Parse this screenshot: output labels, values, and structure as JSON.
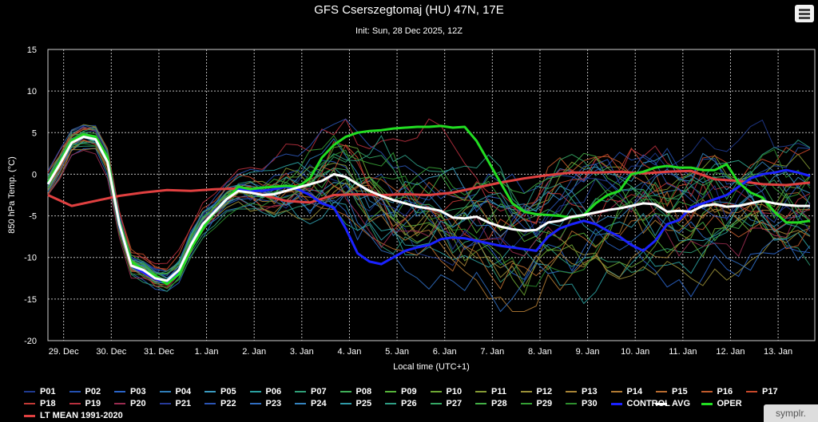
{
  "header": {
    "title": "GFS Cserszegtomaj (HU) 47N, 17E",
    "subtitle": "Init: Sun, 28 Dec 2025, 12Z"
  },
  "badge": "symplr.",
  "chart_data": {
    "type": "line",
    "title": "GFS Cserszegtomaj (HU) 47N, 17E",
    "subtitle": "Init: Sun, 28 Dec 2025, 12Z",
    "xlabel": "Local time (UTC+1)",
    "ylabel": "850 hPa Temp. (°C)",
    "xlim": [
      0,
      16.1
    ],
    "ylim": [
      -20,
      15
    ],
    "y_ticks": [
      -20,
      -15,
      -10,
      -5,
      0,
      5,
      10,
      15
    ],
    "x_ticks": [
      {
        "x": 0.33,
        "label": "29. Dec"
      },
      {
        "x": 1.33,
        "label": "30. Dec"
      },
      {
        "x": 2.33,
        "label": "31. Dec"
      },
      {
        "x": 3.33,
        "label": "1. Jan"
      },
      {
        "x": 4.33,
        "label": "2. Jan"
      },
      {
        "x": 5.33,
        "label": "3. Jan"
      },
      {
        "x": 6.33,
        "label": "4. Jan"
      },
      {
        "x": 7.33,
        "label": "5. Jan"
      },
      {
        "x": 8.33,
        "label": "6. Jan"
      },
      {
        "x": 9.33,
        "label": "7. Jan"
      },
      {
        "x": 10.33,
        "label": "8. Jan"
      },
      {
        "x": 11.33,
        "label": "9. Jan"
      },
      {
        "x": 12.33,
        "label": "10. Jan"
      },
      {
        "x": 13.33,
        "label": "11. Jan"
      },
      {
        "x": 14.33,
        "label": "12. Jan"
      },
      {
        "x": 15.33,
        "label": "13. Jan"
      }
    ],
    "grid": true,
    "legend_position": "bottom",
    "series": [
      {
        "name": "P01",
        "color": "#1f3a8f",
        "width": 1
      },
      {
        "name": "P02",
        "color": "#2350b0",
        "width": 1
      },
      {
        "name": "P03",
        "color": "#2a64c8",
        "width": 1
      },
      {
        "name": "P04",
        "color": "#2f7db8",
        "width": 1
      },
      {
        "name": "P05",
        "color": "#3a9ac0",
        "width": 1
      },
      {
        "name": "P06",
        "color": "#2aa0a0",
        "width": 1
      },
      {
        "name": "P07",
        "color": "#2f9f78",
        "width": 1
      },
      {
        "name": "P08",
        "color": "#3fae58",
        "width": 1
      },
      {
        "name": "P09",
        "color": "#56b43a",
        "width": 1
      },
      {
        "name": "P10",
        "color": "#6da633",
        "width": 1
      },
      {
        "name": "P11",
        "color": "#859a34",
        "width": 1
      },
      {
        "name": "P12",
        "color": "#9a9038",
        "width": 1
      },
      {
        "name": "P13",
        "color": "#a88436",
        "width": 1
      },
      {
        "name": "P14",
        "color": "#b07a33",
        "width": 1
      },
      {
        "name": "P15",
        "color": "#b86b2f",
        "width": 1
      },
      {
        "name": "P16",
        "color": "#c05a2c",
        "width": 1
      },
      {
        "name": "P17",
        "color": "#c8482a",
        "width": 1
      },
      {
        "name": "P18",
        "color": "#c43a36",
        "width": 1
      },
      {
        "name": "P19",
        "color": "#b8303e",
        "width": 1
      },
      {
        "name": "P20",
        "color": "#9a2c50",
        "width": 1
      },
      {
        "name": "P21",
        "color": "#273a9a",
        "width": 1
      },
      {
        "name": "P22",
        "color": "#2b55b5",
        "width": 1
      },
      {
        "name": "P23",
        "color": "#306ec2",
        "width": 1
      },
      {
        "name": "P24",
        "color": "#3584c0",
        "width": 1
      },
      {
        "name": "P25",
        "color": "#2f9aa8",
        "width": 1
      },
      {
        "name": "P26",
        "color": "#2f9f86",
        "width": 1
      },
      {
        "name": "P27",
        "color": "#35a865",
        "width": 1
      },
      {
        "name": "P28",
        "color": "#43b046",
        "width": 1
      },
      {
        "name": "P29",
        "color": "#35a035",
        "width": 1
      },
      {
        "name": "P30",
        "color": "#2e8f2e",
        "width": 1
      },
      {
        "name": "CONTROL",
        "color": "#1a22ff",
        "width": 3
      },
      {
        "name": "AVG",
        "color": "#ffffff",
        "width": 3
      },
      {
        "name": "OPER",
        "color": "#22dd22",
        "width": 3
      },
      {
        "name": "LT MEAN 1991-2020",
        "color": "#e04040",
        "width": 3
      }
    ],
    "reference_series": {
      "AVG": {
        "x": [
          0,
          0.25,
          0.5,
          0.75,
          1,
          1.25,
          1.5,
          1.75,
          2,
          2.25,
          2.5,
          2.75,
          3,
          3.25,
          3.5,
          3.75,
          4,
          4.25,
          4.5,
          4.75,
          5,
          5.25,
          5.5,
          5.75,
          6,
          6.25,
          6.5,
          6.75,
          7,
          7.25,
          7.5,
          7.75,
          8,
          8.25,
          8.5,
          8.75,
          9,
          9.25,
          9.5,
          9.75,
          10,
          10.25,
          10.5,
          10.75,
          11,
          11.25,
          11.5,
          11.75,
          12,
          12.25,
          12.5,
          12.75,
          13,
          13.25,
          13.5,
          13.75,
          14,
          14.25,
          14.5,
          14.75,
          15,
          15.25,
          15.5,
          15.75,
          16
        ],
        "y": [
          -1.2,
          1.2,
          3.8,
          4.5,
          4.2,
          1.5,
          -6,
          -11,
          -11.5,
          -12.5,
          -12.8,
          -11.5,
          -8.5,
          -6,
          -4.5,
          -3,
          -2,
          -2.2,
          -2.5,
          -2.4,
          -2,
          -1.6,
          -1.2,
          -0.8,
          0,
          -0.3,
          -1.2,
          -2,
          -2.6,
          -3.1,
          -3.5,
          -3.9,
          -4.1,
          -4.4,
          -5.2,
          -5.3,
          -5.1,
          -5.8,
          -6.3,
          -6.6,
          -6.8,
          -6.7,
          -5.8,
          -5.6,
          -5.1,
          -4.9,
          -4.6,
          -4.3,
          -4.1,
          -3.8,
          -3.5,
          -3.6,
          -4.5,
          -4.4,
          -4.5,
          -3.8,
          -3.6,
          -3.9,
          -3.8,
          -3.5,
          -3.2,
          -3.5,
          -3.7,
          -3.8,
          -3.8
        ]
      },
      "OPER": {
        "x": [
          0,
          0.25,
          0.5,
          0.75,
          1,
          1.25,
          1.5,
          1.75,
          2,
          2.25,
          2.5,
          2.75,
          3,
          3.25,
          3.5,
          3.75,
          4,
          4.25,
          4.5,
          4.75,
          5,
          5.25,
          5.5,
          5.75,
          6,
          6.25,
          6.5,
          6.75,
          7,
          7.25,
          7.5,
          7.75,
          8,
          8.25,
          8.5,
          8.75,
          9,
          9.25,
          9.5,
          9.75,
          10,
          10.25,
          10.5,
          10.75,
          11,
          11.25,
          11.5,
          11.75,
          12,
          12.25,
          12.5,
          12.75,
          13,
          13.25,
          13.5,
          13.75,
          14,
          14.25,
          14.5,
          14.75,
          15,
          15.25,
          15.5,
          15.75,
          16
        ],
        "y": [
          -1,
          1.5,
          4,
          4.8,
          4.5,
          2,
          -6,
          -10.5,
          -11.5,
          -12.2,
          -13.2,
          -12,
          -9,
          -6.5,
          -4.5,
          -3,
          -1.5,
          -1.8,
          -1.6,
          -1.5,
          -1.4,
          -1.5,
          -0.5,
          2,
          3.5,
          4.5,
          5,
          5.2,
          5.3,
          5.5,
          5.6,
          5.7,
          5.7,
          5.8,
          5.6,
          5.7,
          4,
          1.5,
          -1,
          -3.5,
          -4.5,
          -4.8,
          -4.9,
          -5,
          -5.2,
          -4.9,
          -3.5,
          -2.5,
          -2,
          0,
          0.3,
          0.8,
          1,
          0.8,
          0.8,
          0.5,
          0.5,
          1.2,
          -1,
          -2.2,
          -2.8,
          -4.5,
          -5.8,
          -5.8,
          -5.6
        ]
      },
      "CONTROL": {
        "x": [
          0,
          0.25,
          0.5,
          0.75,
          1,
          1.25,
          1.5,
          1.75,
          2,
          2.25,
          2.5,
          2.75,
          3,
          3.25,
          3.5,
          3.75,
          4,
          4.25,
          4.5,
          4.75,
          5,
          5.25,
          5.5,
          5.75,
          6,
          6.25,
          6.5,
          6.75,
          7,
          7.25,
          7.5,
          7.75,
          8,
          8.25,
          8.5,
          8.75,
          9,
          9.25,
          9.5,
          9.75,
          10,
          10.25,
          10.5,
          10.75,
          11,
          11.25,
          11.5,
          11.75,
          12,
          12.25,
          12.5,
          12.75,
          13,
          13.25,
          13.5,
          13.75,
          14,
          14.25,
          14.5,
          14.75,
          15,
          15.25,
          15.5,
          15.75,
          16
        ],
        "y": [
          -1.1,
          1.3,
          3.9,
          4.6,
          4.3,
          1.7,
          -6.2,
          -11,
          -11.8,
          -12.6,
          -13,
          -11.8,
          -8.8,
          -6.2,
          -4.4,
          -3,
          -1.8,
          -2,
          -2,
          -1.8,
          -1.5,
          -1.8,
          -2.5,
          -3.5,
          -4,
          -6.5,
          -9.5,
          -10.5,
          -10.8,
          -10,
          -9.2,
          -8.8,
          -8.5,
          -7.8,
          -7.6,
          -7.7,
          -8,
          -8.3,
          -8.6,
          -8.8,
          -9,
          -9.2,
          -7.5,
          -6.5,
          -6,
          -5.6,
          -6,
          -6.8,
          -7.5,
          -8.5,
          -9.2,
          -8,
          -6,
          -5.5,
          -4,
          -3.5,
          -3,
          -2.5,
          -1.5,
          -0.5,
          0,
          0.2,
          0.5,
          0.2,
          -0.2
        ]
      },
      "LT MEAN 1991-2020": {
        "x": [
          0,
          0.5,
          1,
          1.5,
          2,
          2.5,
          3,
          3.5,
          4,
          4.5,
          5,
          5.5,
          6,
          6.5,
          7,
          7.5,
          8,
          8.5,
          9,
          9.5,
          10,
          10.5,
          11,
          11.5,
          12,
          12.5,
          13,
          13.5,
          14,
          14.5,
          15,
          15.5,
          16
        ],
        "y": [
          -2.5,
          -3.8,
          -3.2,
          -2.6,
          -2.2,
          -1.9,
          -2.0,
          -1.8,
          -1.7,
          -2.5,
          -3.2,
          -3.4,
          -2.5,
          -2.4,
          -2.5,
          -2.4,
          -2.5,
          -2.2,
          -1.6,
          -1.0,
          -0.5,
          -0.1,
          0.2,
          0.2,
          0.3,
          0.1,
          0.3,
          0.4,
          -0.6,
          -0.8,
          -1.2,
          -1.3,
          -1.0
        ]
      }
    }
  },
  "legend": [
    {
      "name": "P01"
    },
    {
      "name": "P02"
    },
    {
      "name": "P03"
    },
    {
      "name": "P04"
    },
    {
      "name": "P05"
    },
    {
      "name": "P06"
    },
    {
      "name": "P07"
    },
    {
      "name": "P08"
    },
    {
      "name": "P09"
    },
    {
      "name": "P10"
    },
    {
      "name": "P11"
    },
    {
      "name": "P12"
    },
    {
      "name": "P13"
    },
    {
      "name": "P14"
    },
    {
      "name": "P15"
    },
    {
      "name": "P16"
    },
    {
      "name": "P17"
    },
    {
      "name": "P18"
    },
    {
      "name": "P19"
    },
    {
      "name": "P20"
    },
    {
      "name": "P21"
    },
    {
      "name": "P22"
    },
    {
      "name": "P23"
    },
    {
      "name": "P24"
    },
    {
      "name": "P25"
    },
    {
      "name": "P26"
    },
    {
      "name": "P27"
    },
    {
      "name": "P28"
    },
    {
      "name": "P29"
    },
    {
      "name": "P30"
    },
    {
      "name": "CONTROL"
    },
    {
      "name": "AVG"
    },
    {
      "name": "OPER"
    },
    {
      "name": "LT MEAN 1991-2020"
    }
  ]
}
